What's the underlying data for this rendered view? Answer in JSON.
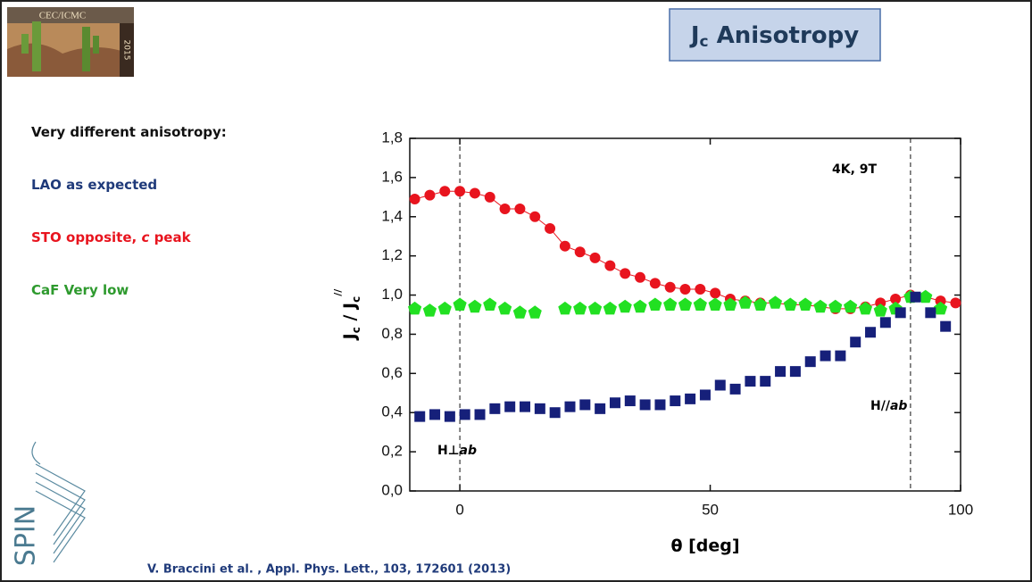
{
  "slide": {
    "logo_text": "CEC/ICMC",
    "logo_year": "2015",
    "title": [
      "J",
      "c",
      " Anisotropy"
    ],
    "bullets": [
      {
        "parts": [
          "Very different anisotropy:"
        ],
        "color": "#111111"
      },
      {
        "parts": [
          "LAO as expected"
        ],
        "color": "#1f3a7a"
      },
      {
        "parts": [
          "STO opposite, ",
          "c",
          " peak"
        ],
        "color": "#e8141e"
      },
      {
        "parts": [
          "CaF Very low"
        ],
        "color": "#2e9a2e"
      }
    ],
    "spin": "SPIN",
    "citation": "V. Braccini et al. , Appl. Phys. Lett., 103, 172601 (2013)"
  },
  "chart_data": {
    "type": "scatter",
    "x_label": "θ [deg]",
    "y_label": [
      "J",
      "c",
      " / J",
      "c",
      "//"
    ],
    "annotations": [
      [
        "4K, 9T"
      ],
      [
        "H⊥",
        "ab"
      ],
      [
        "H//",
        "ab"
      ]
    ],
    "vlines": [
      0,
      90
    ],
    "xlim": [
      -10,
      100
    ],
    "xticks": [
      0,
      50,
      100
    ],
    "ylim": [
      0,
      1.8
    ],
    "yticks": [
      {
        "value": 0,
        "label": "0,0"
      },
      {
        "value": 0.2,
        "label": "0,2"
      },
      {
        "value": 0.4,
        "label": "0,4"
      },
      {
        "value": 0.6,
        "label": "0,6"
      },
      {
        "value": 0.8,
        "label": "0,8"
      },
      {
        "value": 1.0,
        "label": "1,0"
      },
      {
        "value": 1.2,
        "label": "1,2"
      },
      {
        "value": 1.4,
        "label": "1,4"
      },
      {
        "value": 1.6,
        "label": "1,6"
      },
      {
        "value": 1.8,
        "label": "1,8"
      }
    ],
    "series": [
      {
        "color": "#e8141e",
        "marker": "circle",
        "line": true,
        "x": [
          -9,
          -6,
          -3,
          0,
          3,
          6,
          9,
          12,
          15,
          18,
          21,
          24,
          27,
          30,
          33,
          36,
          39,
          42,
          45,
          48,
          51,
          54,
          57,
          60,
          63,
          66,
          69,
          72,
          75,
          78,
          81,
          84,
          87,
          90,
          93,
          96,
          99
        ],
        "values": [
          1.49,
          1.51,
          1.53,
          1.53,
          1.52,
          1.5,
          1.44,
          1.44,
          1.4,
          1.34,
          1.25,
          1.22,
          1.19,
          1.15,
          1.11,
          1.09,
          1.06,
          1.04,
          1.03,
          1.03,
          1.01,
          0.98,
          0.97,
          0.96,
          0.96,
          0.95,
          0.95,
          0.94,
          0.93,
          0.93,
          0.94,
          0.96,
          0.98,
          1.0,
          0.99,
          0.97,
          0.96
        ]
      },
      {
        "color": "#22e022",
        "marker": "pentagon",
        "line": false,
        "x": [
          -9,
          -6,
          -3,
          0,
          3,
          6,
          9,
          12,
          15,
          18,
          21,
          24,
          27,
          30,
          33,
          36,
          39,
          42,
          45,
          48,
          51,
          54,
          57,
          60,
          63,
          66,
          69,
          72,
          75,
          78,
          81,
          84,
          87,
          90,
          93,
          96
        ],
        "values": [
          0.93,
          0.92,
          0.93,
          0.95,
          0.94,
          0.95,
          0.93,
          0.91,
          0.91,
          null,
          0.93,
          0.93,
          0.93,
          0.93,
          0.94,
          0.94,
          0.95,
          0.95,
          0.95,
          0.95,
          0.95,
          0.95,
          0.96,
          0.95,
          0.96,
          0.95,
          0.95,
          0.94,
          0.94,
          0.94,
          0.93,
          0.92,
          0.93,
          0.99,
          0.99,
          0.93
        ]
      },
      {
        "color": "#16207a",
        "marker": "square",
        "line": false,
        "x": [
          -8,
          -5,
          -2,
          1,
          4,
          7,
          10,
          13,
          16,
          19,
          22,
          25,
          28,
          31,
          34,
          37,
          40,
          43,
          46,
          49,
          52,
          55,
          58,
          61,
          64,
          67,
          70,
          73,
          76,
          79,
          82,
          85,
          88,
          91,
          94,
          97
        ],
        "values": [
          0.38,
          0.39,
          0.38,
          0.39,
          0.39,
          0.42,
          0.43,
          0.43,
          0.42,
          0.4,
          0.43,
          0.44,
          0.42,
          0.45,
          0.46,
          0.44,
          0.44,
          0.46,
          0.47,
          0.49,
          0.54,
          0.52,
          0.56,
          0.56,
          0.61,
          0.61,
          0.66,
          0.69,
          0.69,
          0.76,
          0.81,
          0.86,
          0.91,
          0.99,
          0.91,
          0.84
        ]
      }
    ]
  }
}
